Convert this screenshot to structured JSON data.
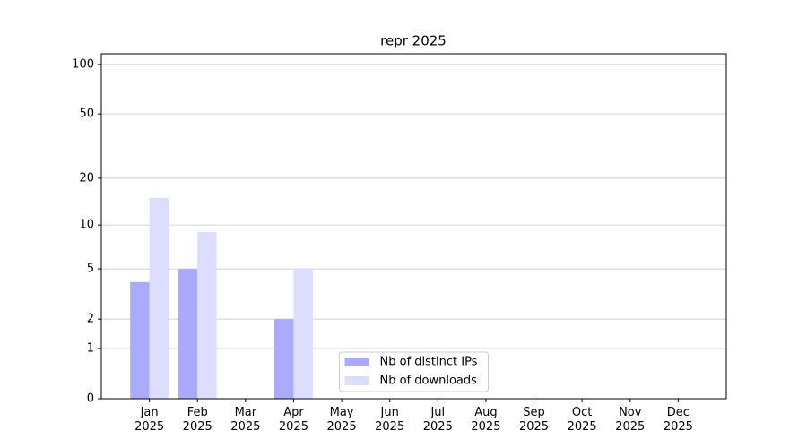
{
  "chart_data": {
    "type": "bar",
    "title": "repr 2025",
    "categories": [
      "Jan\n2025",
      "Feb\n2025",
      "Mar\n2025",
      "Apr\n2025",
      "May\n2025",
      "Jun\n2025",
      "Jul\n2025",
      "Aug\n2025",
      "Sep\n2025",
      "Oct\n2025",
      "Nov\n2025",
      "Dec\n2025"
    ],
    "series": [
      {
        "name": "Nb of distinct IPs",
        "color": "#aaaaff",
        "values": [
          4,
          5,
          0,
          2,
          0,
          0,
          0,
          0,
          0,
          0,
          0,
          0
        ]
      },
      {
        "name": "Nb of downloads",
        "color": "#ddddff",
        "values": [
          15,
          9,
          0,
          5,
          0,
          0,
          0,
          0,
          0,
          0,
          0,
          0
        ]
      }
    ],
    "yscale": "log1p",
    "ylim": [
      0,
      116
    ],
    "yticks": [
      0,
      1,
      2,
      5,
      10,
      20,
      50,
      100
    ],
    "grid": true,
    "legend": "lower center"
  }
}
